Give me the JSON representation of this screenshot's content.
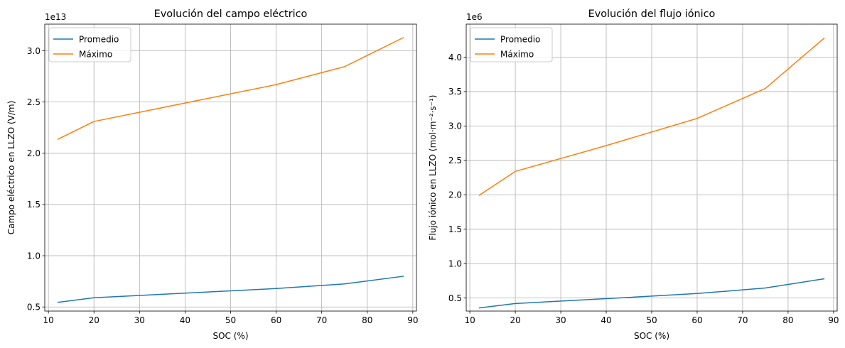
{
  "chart_data": [
    {
      "type": "line",
      "title": "Evolución del campo eléctrico",
      "xlabel": "SOC (%)",
      "ylabel": "Campo eléctrico en LLZO (V/m)",
      "y_offset_label": "1e13",
      "x": [
        12,
        20,
        40,
        60,
        75,
        88
      ],
      "xlim": [
        9.2,
        90.8
      ],
      "ylim": [
        0.46,
        3.26
      ],
      "xticks": [
        10,
        20,
        30,
        40,
        50,
        60,
        70,
        80,
        90
      ],
      "yticks": [
        0.5,
        1.0,
        1.5,
        2.0,
        2.5,
        3.0
      ],
      "ytick_labels": [
        "0.5",
        "1.0",
        "1.5",
        "2.0",
        "2.5",
        "3.0"
      ],
      "grid": true,
      "legend_position": "top-left",
      "series": [
        {
          "name": "Promedio",
          "color": "#1f77b4",
          "values": [
            0.545,
            0.59,
            0.635,
            0.68,
            0.725,
            0.8
          ]
        },
        {
          "name": "Máximo",
          "color": "#ff7f0e",
          "values": [
            2.135,
            2.31,
            2.49,
            2.67,
            2.845,
            3.13
          ]
        }
      ]
    },
    {
      "type": "line",
      "title": "Evolución del flujo iónico",
      "xlabel": "SOC (%)",
      "ylabel": "Flujo iónico en LLZO (mol·m⁻²·s⁻¹)",
      "y_offset_label": "1e6",
      "x": [
        12,
        20,
        40,
        60,
        75,
        88
      ],
      "xlim": [
        9.2,
        90.8
      ],
      "ylim": [
        0.31,
        4.48
      ],
      "xticks": [
        10,
        20,
        30,
        40,
        50,
        60,
        70,
        80,
        90
      ],
      "yticks": [
        0.5,
        1.0,
        1.5,
        2.0,
        2.5,
        3.0,
        3.5,
        4.0
      ],
      "ytick_labels": [
        "0.5",
        "1.0",
        "1.5",
        "2.0",
        "2.5",
        "3.0",
        "3.5",
        "4.0"
      ],
      "grid": true,
      "legend_position": "top-left",
      "series": [
        {
          "name": "Promedio",
          "color": "#1f77b4",
          "values": [
            0.355,
            0.42,
            0.49,
            0.565,
            0.645,
            0.78
          ]
        },
        {
          "name": "Máximo",
          "color": "#ff7f0e",
          "values": [
            1.99,
            2.34,
            2.715,
            3.11,
            3.545,
            4.28
          ]
        }
      ]
    }
  ]
}
